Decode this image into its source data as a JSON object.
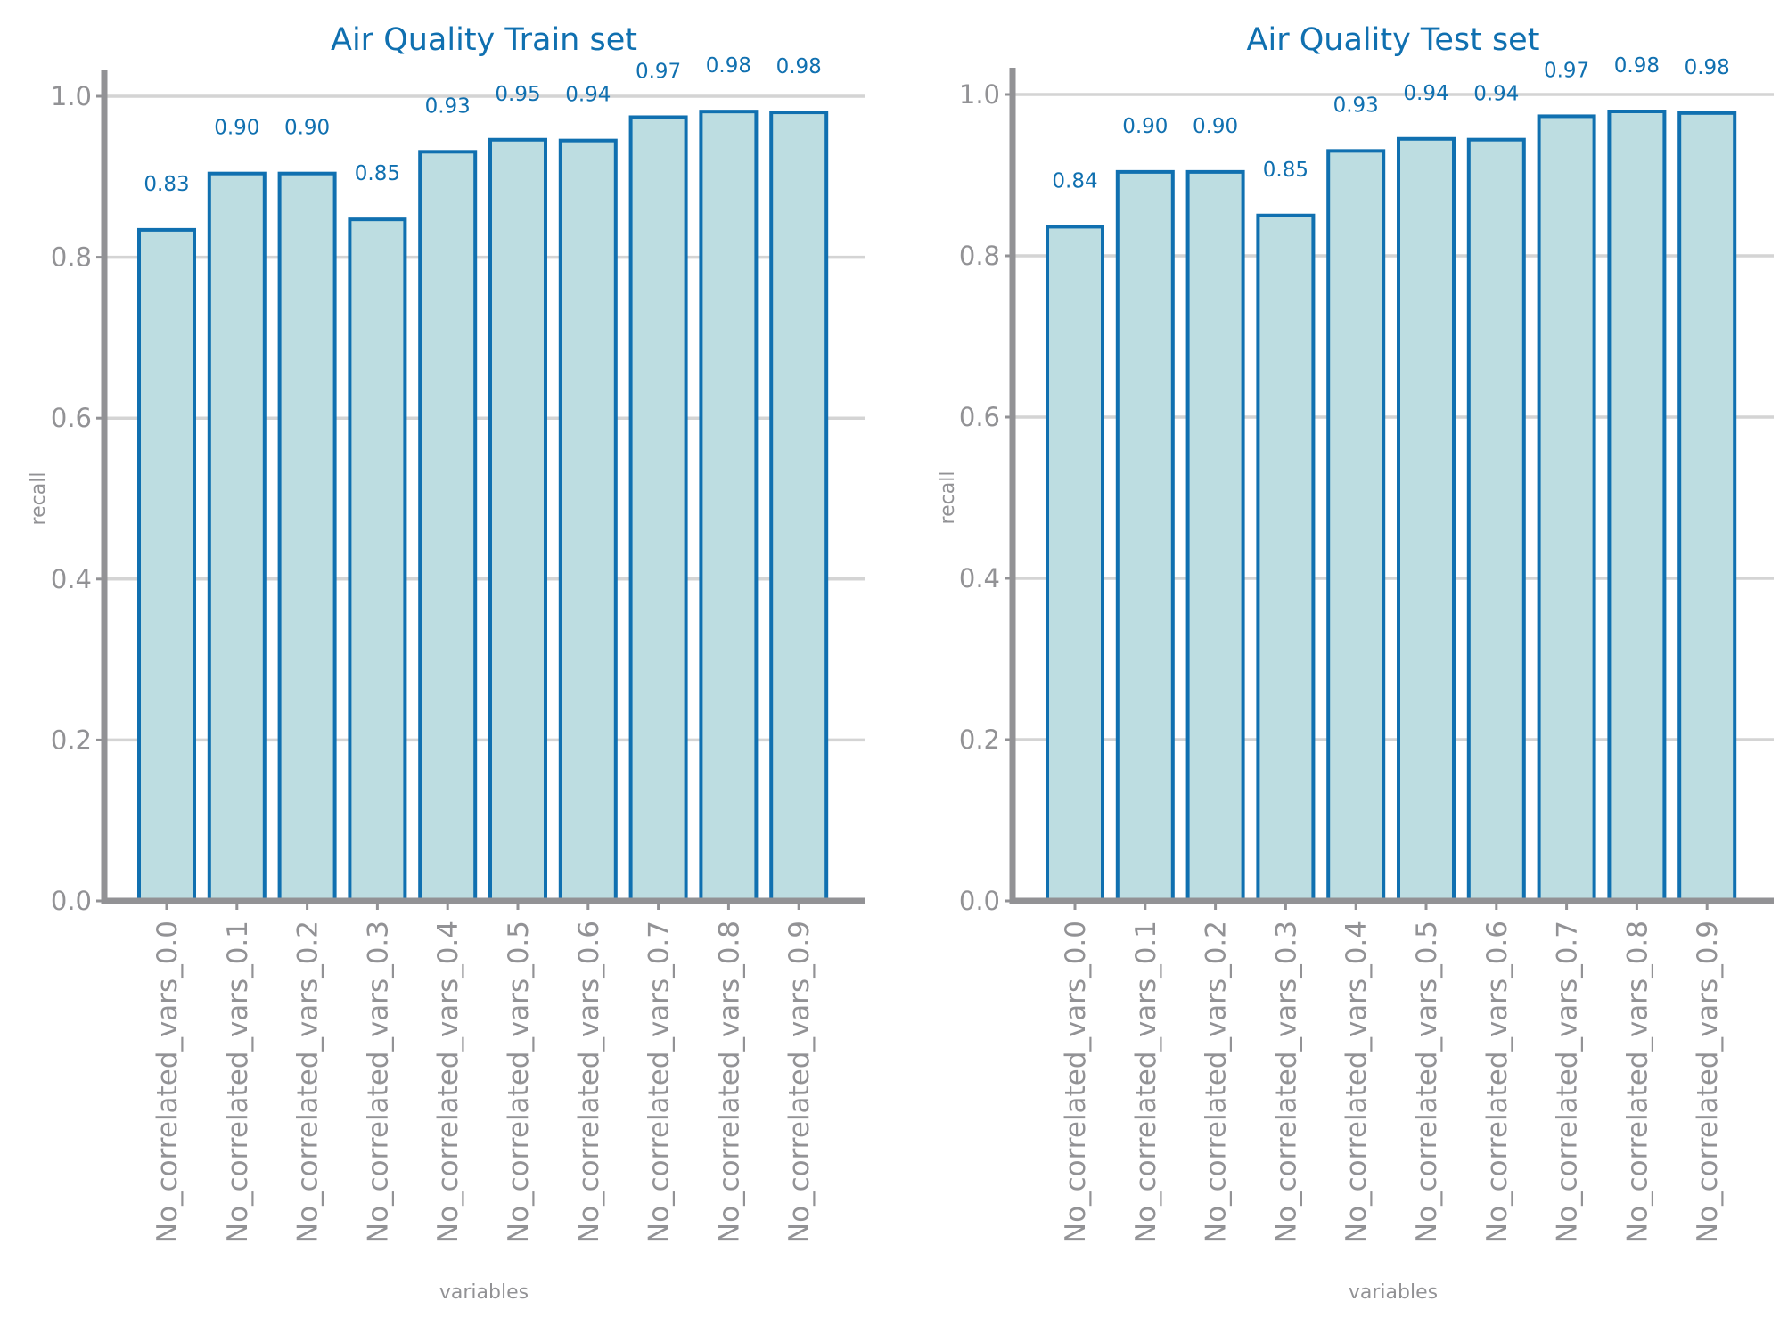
{
  "colors": {
    "bar_fill": "#bddde1",
    "bar_edge": "#1070b0",
    "title": "#1070b0",
    "data_label": "#1070b0",
    "axis": "#929295",
    "grid": "#d4d4d4",
    "text": "#929295"
  },
  "chart_data": [
    {
      "type": "bar",
      "title": "Air Quality Train set",
      "xlabel": "variables",
      "ylabel": "recall",
      "ylim": [
        0,
        1.0
      ],
      "yticks": [
        "0.0",
        "0.2",
        "0.4",
        "0.6",
        "0.8",
        "1.0"
      ],
      "grid": "horizontal",
      "categories": [
        "No_correlated_vars_0.0",
        "No_correlated_vars_0.1",
        "No_correlated_vars_0.2",
        "No_correlated_vars_0.3",
        "No_correlated_vars_0.4",
        "No_correlated_vars_0.5",
        "No_correlated_vars_0.6",
        "No_correlated_vars_0.7",
        "No_correlated_vars_0.8",
        "No_correlated_vars_0.9"
      ],
      "values": [
        0.834,
        0.904,
        0.904,
        0.847,
        0.931,
        0.946,
        0.945,
        0.974,
        0.981,
        0.98
      ],
      "data_labels": [
        "0.83",
        "0.90",
        "0.90",
        "0.85",
        "0.93",
        "0.95",
        "0.94",
        "0.97",
        "0.98",
        "0.98"
      ]
    },
    {
      "type": "bar",
      "title": "Air Quality Test set",
      "xlabel": "variables",
      "ylabel": "recall",
      "ylim": [
        0,
        1.0
      ],
      "yticks": [
        "0.0",
        "0.2",
        "0.4",
        "0.6",
        "0.8",
        "1.0"
      ],
      "grid": "horizontal",
      "categories": [
        "No_correlated_vars_0.0",
        "No_correlated_vars_0.1",
        "No_correlated_vars_0.2",
        "No_correlated_vars_0.3",
        "No_correlated_vars_0.4",
        "No_correlated_vars_0.5",
        "No_correlated_vars_0.6",
        "No_correlated_vars_0.7",
        "No_correlated_vars_0.8",
        "No_correlated_vars_0.9"
      ],
      "values": [
        0.836,
        0.904,
        0.904,
        0.85,
        0.93,
        0.945,
        0.944,
        0.973,
        0.979,
        0.977
      ],
      "data_labels": [
        "0.84",
        "0.90",
        "0.90",
        "0.85",
        "0.93",
        "0.94",
        "0.94",
        "0.97",
        "0.98",
        "0.98"
      ]
    }
  ]
}
